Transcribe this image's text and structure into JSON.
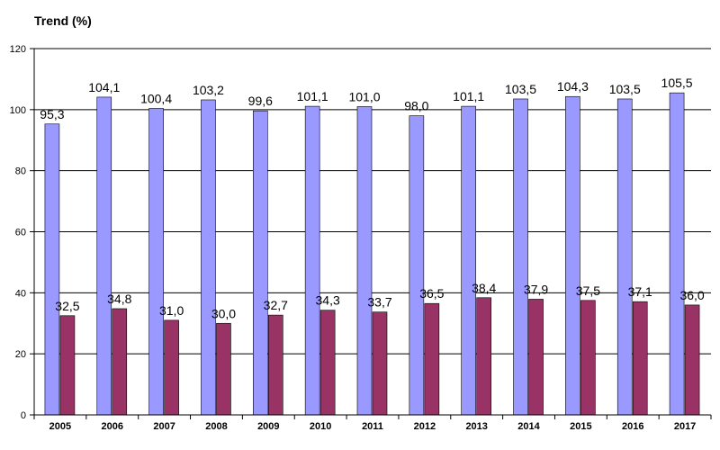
{
  "chart_data": {
    "type": "bar",
    "title": "Trend (%)",
    "categories": [
      "2005",
      "2006",
      "2007",
      "2008",
      "2009",
      "2010",
      "2011",
      "2012",
      "2013",
      "2014",
      "2015",
      "2016",
      "2017"
    ],
    "series": [
      {
        "values": [
          95.3,
          104.1,
          100.4,
          103.2,
          99.6,
          101.1,
          101.0,
          98.0,
          101.1,
          103.5,
          104.3,
          103.5,
          105.5
        ],
        "labels": [
          "95,3",
          "104,1",
          "100,4",
          "103,2",
          "99,6",
          "101,1",
          "101,0",
          "98,0",
          "101,1",
          "103,5",
          "104,3",
          "103,5",
          "105,5"
        ],
        "color": "#9999FF"
      },
      {
        "values": [
          32.5,
          34.8,
          31.0,
          30.0,
          32.7,
          34.3,
          33.7,
          36.5,
          38.4,
          37.9,
          37.5,
          37.1,
          36.0
        ],
        "labels": [
          "32,5",
          "34,8",
          "31,0",
          "30,0",
          "32,7",
          "34,3",
          "33,7",
          "36,5",
          "38,4",
          "37,9",
          "37,5",
          "37,1",
          "36,0"
        ],
        "color": "#993366"
      }
    ],
    "yticks": [
      "0",
      "20",
      "40",
      "60",
      "80",
      "100",
      "120"
    ],
    "ylim": [
      0,
      120
    ],
    "grid": true,
    "xlabel": "",
    "ylabel": ""
  }
}
